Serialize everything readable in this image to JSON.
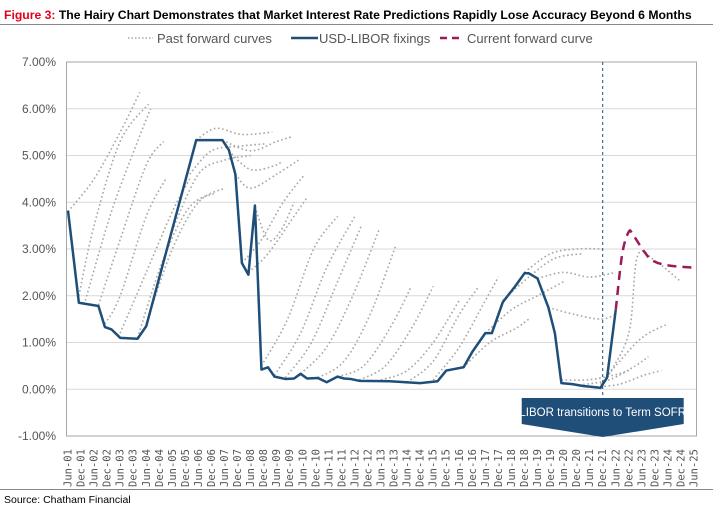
{
  "title": {
    "figure": "Figure 3:",
    "text": "The Hairy Chart Demonstrates that Market Interest Rate Predictions Rapidly Lose Accuracy Beyond 6 Months"
  },
  "source": "Source: Chatham Financial",
  "chart_data": {
    "type": "line",
    "title": "The Hairy Chart Demonstrates that Market Interest Rate Predictions Rapidly Lose Accuracy Beyond 6 Months",
    "xlabel": "",
    "ylabel": "",
    "ylim": [
      -1,
      7
    ],
    "xlim": [
      "2001-06",
      "2025-06"
    ],
    "y_ticks": [
      "7.00%",
      "6.00%",
      "5.00%",
      "4.00%",
      "3.00%",
      "2.00%",
      "1.00%",
      "0.00%",
      "-1.00%"
    ],
    "y_tick_values": [
      7,
      6,
      5,
      4,
      3,
      2,
      1,
      0,
      -1
    ],
    "x_ticks": [
      "Jun-01",
      "Dec-01",
      "Jun-02",
      "Dec-02",
      "Jun-03",
      "Dec-03",
      "Jun-04",
      "Dec-04",
      "Jun-05",
      "Dec-05",
      "Jun-06",
      "Dec-06",
      "Jun-07",
      "Dec-07",
      "Jun-08",
      "Dec-08",
      "Jun-09",
      "Dec-09",
      "Jun-10",
      "Dec-10",
      "Jun-11",
      "Dec-11",
      "Jun-12",
      "Dec-12",
      "Jun-13",
      "Dec-13",
      "Jun-14",
      "Dec-14",
      "Jun-15",
      "Dec-15",
      "Jun-16",
      "Dec-16",
      "Jun-17",
      "Dec-17",
      "Jun-18",
      "Dec-18",
      "Jun-19",
      "Dec-19",
      "Jun-20",
      "Dec-20",
      "Jun-21",
      "Dec-21",
      "Jun-22",
      "Dec-22",
      "Jun-23",
      "Dec-23",
      "Jun-24",
      "Dec-24",
      "Jun-25"
    ],
    "grid": "horizontal",
    "legend": "top",
    "legend_entries": [
      "Past forward curves",
      "USD-LIBOR fixings",
      "Current forward curve"
    ],
    "colors": {
      "libor": "#1f4e79",
      "current": "#9b1b5a",
      "past": "#a6a6a6",
      "annotation": "#1f4e79",
      "grid": "#d9d9d9"
    },
    "annotation": {
      "text": "LIBOR transitions to Term SOFR",
      "x": "2021-12"
    },
    "series": [
      {
        "name": "USD-LIBOR fixings",
        "style": "solid",
        "points": [
          [
            "2001-06",
            3.82
          ],
          [
            "2001-11",
            1.85
          ],
          [
            "2002-08",
            1.78
          ],
          [
            "2002-11",
            1.33
          ],
          [
            "2003-02",
            1.28
          ],
          [
            "2003-06",
            1.1
          ],
          [
            "2004-02",
            1.08
          ],
          [
            "2004-06",
            1.35
          ],
          [
            "2006-05",
            5.33
          ],
          [
            "2007-05",
            5.33
          ],
          [
            "2007-08",
            5.12
          ],
          [
            "2007-11",
            4.6
          ],
          [
            "2008-02",
            2.7
          ],
          [
            "2008-05",
            2.45
          ],
          [
            "2008-08",
            3.93
          ],
          [
            "2008-11",
            0.42
          ],
          [
            "2009-02",
            0.47
          ],
          [
            "2009-05",
            0.27
          ],
          [
            "2009-10",
            0.22
          ],
          [
            "2010-02",
            0.23
          ],
          [
            "2010-05",
            0.33
          ],
          [
            "2010-08",
            0.23
          ],
          [
            "2011-01",
            0.24
          ],
          [
            "2011-05",
            0.15
          ],
          [
            "2011-10",
            0.27
          ],
          [
            "2012-01",
            0.23
          ],
          [
            "2012-04",
            0.22
          ],
          [
            "2012-08",
            0.18
          ],
          [
            "2013-10",
            0.17
          ],
          [
            "2014-12",
            0.13
          ],
          [
            "2015-08",
            0.17
          ],
          [
            "2015-12",
            0.4
          ],
          [
            "2016-08",
            0.47
          ],
          [
            "2016-12",
            0.8
          ],
          [
            "2017-06",
            1.2
          ],
          [
            "2017-09",
            1.2
          ],
          [
            "2018-02",
            1.86
          ],
          [
            "2018-08",
            2.22
          ],
          [
            "2018-12",
            2.48
          ],
          [
            "2019-02",
            2.48
          ],
          [
            "2019-06",
            2.37
          ],
          [
            "2019-11",
            1.75
          ],
          [
            "2020-02",
            1.2
          ],
          [
            "2020-05",
            0.13
          ],
          [
            "2020-10",
            0.11
          ],
          [
            "2021-03",
            0.07
          ],
          [
            "2021-07",
            0.05
          ],
          [
            "2021-11",
            0.03
          ],
          [
            "2022-02",
            0.25
          ],
          [
            "2022-06",
            1.7
          ]
        ]
      },
      {
        "name": "Current forward curve",
        "style": "dashed",
        "points": [
          [
            "2022-06",
            1.7
          ],
          [
            "2022-09",
            2.9
          ],
          [
            "2022-12",
            3.37
          ],
          [
            "2023-02",
            3.3
          ],
          [
            "2023-07",
            2.95
          ],
          [
            "2023-11",
            2.75
          ],
          [
            "2024-06",
            2.65
          ],
          [
            "2025-06",
            2.6
          ]
        ]
      },
      {
        "name": "Past forward curves",
        "style": "dotted",
        "curves": [
          [
            [
              "2001-06",
              3.8
            ],
            [
              "2002-06",
              4.5
            ],
            [
              "2003-06",
              5.5
            ],
            [
              "2004-03",
              6.35
            ]
          ],
          [
            [
              "2001-11",
              2.0
            ],
            [
              "2002-06",
              3.5
            ],
            [
              "2003-06",
              5.3
            ],
            [
              "2004-07",
              6.1
            ]
          ],
          [
            [
              "2002-02",
              1.9
            ],
            [
              "2003-02",
              3.8
            ],
            [
              "2004-02",
              5.3
            ],
            [
              "2004-08",
              6.0
            ]
          ],
          [
            [
              "2002-08",
              1.8
            ],
            [
              "2003-06",
              3.2
            ],
            [
              "2004-06",
              4.8
            ],
            [
              "2005-02",
              5.3
            ]
          ],
          [
            [
              "2002-11",
              1.4
            ],
            [
              "2003-06",
              2.0
            ],
            [
              "2004-06",
              3.7
            ],
            [
              "2005-03",
              4.5
            ]
          ],
          [
            [
              "2003-06",
              1.2
            ],
            [
              "2004-06",
              2.5
            ],
            [
              "2005-06",
              3.8
            ],
            [
              "2006-02",
              4.5
            ]
          ],
          [
            [
              "2004-02",
              1.1
            ],
            [
              "2005-02",
              2.8
            ],
            [
              "2006-02",
              3.9
            ],
            [
              "2007-02",
              4.2
            ]
          ],
          [
            [
              "2004-06",
              1.4
            ],
            [
              "2005-06",
              3.0
            ],
            [
              "2006-06",
              4.0
            ],
            [
              "2007-06",
              4.3
            ]
          ],
          [
            [
              "2005-06",
              3.4
            ],
            [
              "2006-06",
              4.6
            ],
            [
              "2007-06",
              4.9
            ],
            [
              "2008-06",
              5.0
            ]
          ],
          [
            [
              "2006-02",
              4.6
            ],
            [
              "2006-12",
              5.1
            ],
            [
              "2008-01",
              5.2
            ],
            [
              "2009-01",
              5.25
            ]
          ],
          [
            [
              "2006-05",
              5.33
            ],
            [
              "2007-02",
              5.58
            ],
            [
              "2008-02",
              5.45
            ],
            [
              "2009-04",
              5.5
            ]
          ],
          [
            [
              "2007-05",
              5.33
            ],
            [
              "2008-06",
              5.1
            ],
            [
              "2009-06",
              5.3
            ],
            [
              "2010-01",
              5.4
            ]
          ],
          [
            [
              "2007-08",
              5.1
            ],
            [
              "2008-06",
              4.7
            ],
            [
              "2009-06",
              4.8
            ],
            [
              "2009-08",
              4.9
            ]
          ],
          [
            [
              "2007-11",
              4.6
            ],
            [
              "2008-06",
              4.3
            ],
            [
              "2009-06",
              4.6
            ],
            [
              "2010-04",
              4.9
            ]
          ],
          [
            [
              "2008-02",
              2.7
            ],
            [
              "2008-11",
              3.2
            ],
            [
              "2009-09",
              4.0
            ],
            [
              "2010-07",
              4.6
            ]
          ],
          [
            [
              "2008-05",
              2.5
            ],
            [
              "2009-02",
              2.9
            ],
            [
              "2010-02",
              3.7
            ],
            [
              "2010-08",
              4.1
            ]
          ],
          [
            [
              "2008-08",
              3.9
            ],
            [
              "2009-02",
              3.2
            ],
            [
              "2009-08",
              3.4
            ],
            [
              "2010-02",
              4.0
            ]
          ],
          [
            [
              "2008-11",
              0.5
            ],
            [
              "2009-11",
              1.5
            ],
            [
              "2010-11",
              3.0
            ],
            [
              "2011-10",
              3.7
            ]
          ],
          [
            [
              "2009-05",
              0.3
            ],
            [
              "2010-05",
              1.2
            ],
            [
              "2011-05",
              2.6
            ],
            [
              "2012-06",
              3.7
            ]
          ],
          [
            [
              "2009-10",
              0.25
            ],
            [
              "2010-10",
              1.0
            ],
            [
              "2011-10",
              2.3
            ],
            [
              "2012-09",
              3.5
            ]
          ],
          [
            [
              "2010-05",
              0.33
            ],
            [
              "2011-05",
              0.9
            ],
            [
              "2012-05",
              2.0
            ],
            [
              "2013-05",
              3.4
            ]
          ],
          [
            [
              "2011-01",
              0.25
            ],
            [
              "2012-01",
              0.6
            ],
            [
              "2013-01",
              1.6
            ],
            [
              "2014-01",
              3.1
            ]
          ],
          [
            [
              "2011-10",
              0.27
            ],
            [
              "2012-10",
              0.5
            ],
            [
              "2013-10",
              1.3
            ],
            [
              "2014-08",
              2.2
            ]
          ],
          [
            [
              "2012-08",
              0.2
            ],
            [
              "2013-08",
              0.5
            ],
            [
              "2014-08",
              1.3
            ],
            [
              "2015-06",
              2.2
            ]
          ],
          [
            [
              "2013-06",
              0.2
            ],
            [
              "2014-06",
              0.4
            ],
            [
              "2015-06",
              1.0
            ],
            [
              "2016-06",
              1.9
            ]
          ],
          [
            [
              "2014-06",
              0.15
            ],
            [
              "2015-06",
              0.6
            ],
            [
              "2016-06",
              1.6
            ],
            [
              "2017-03",
              2.2
            ]
          ],
          [
            [
              "2015-06",
              0.2
            ],
            [
              "2016-06",
              0.9
            ],
            [
              "2017-06",
              1.9
            ],
            [
              "2017-12",
              2.4
            ]
          ],
          [
            [
              "2016-08",
              0.47
            ],
            [
              "2017-08",
              1.0
            ],
            [
              "2018-08",
              1.3
            ],
            [
              "2019-02",
              1.5
            ]
          ],
          [
            [
              "2017-06",
              1.2
            ],
            [
              "2018-06",
              1.7
            ],
            [
              "2019-06",
              2.0
            ],
            [
              "2020-06",
              2.3
            ]
          ],
          [
            [
              "2018-02",
              1.9
            ],
            [
              "2019-02",
              2.4
            ],
            [
              "2020-02",
              2.8
            ],
            [
              "2021-03",
              2.9
            ]
          ],
          [
            [
              "2018-12",
              2.5
            ],
            [
              "2019-12",
              2.9
            ],
            [
              "2020-12",
              3.0
            ],
            [
              "2021-12",
              3.0
            ]
          ],
          [
            [
              "2019-06",
              2.37
            ],
            [
              "2020-06",
              2.5
            ],
            [
              "2021-06",
              2.4
            ],
            [
              "2022-06",
              2.5
            ]
          ],
          [
            [
              "2019-11",
              1.75
            ],
            [
              "2020-11",
              1.6
            ],
            [
              "2021-11",
              1.5
            ],
            [
              "2022-06",
              1.6
            ]
          ],
          [
            [
              "2020-05",
              0.2
            ],
            [
              "2021-05",
              0.2
            ],
            [
              "2022-05",
              0.3
            ],
            [
              "2022-12",
              0.4
            ]
          ],
          [
            [
              "2021-03",
              0.1
            ],
            [
              "2022-03",
              0.2
            ],
            [
              "2023-03",
              0.5
            ],
            [
              "2023-09",
              0.7
            ]
          ],
          [
            [
              "2021-07",
              0.05
            ],
            [
              "2022-07",
              0.1
            ],
            [
              "2023-07",
              0.3
            ],
            [
              "2024-03",
              0.4
            ]
          ],
          [
            [
              "2021-11",
              0.1
            ],
            [
              "2022-06",
              0.5
            ],
            [
              "2023-06",
              1.1
            ],
            [
              "2024-06",
              1.4
            ]
          ],
          [
            [
              "2022-02",
              0.25
            ],
            [
              "2022-12",
              1.2
            ],
            [
              "2023-04",
              2.85
            ],
            [
              "2023-12",
              2.75
            ],
            [
              "2024-12",
              2.3
            ]
          ]
        ]
      }
    ]
  }
}
